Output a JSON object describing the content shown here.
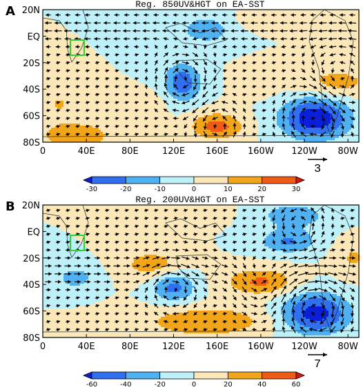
{
  "chart_data": [
    {
      "type": "heatmap",
      "panel_letter": "A",
      "title": "Reg. 850UV&HGT on  EA-SST",
      "x_tick_labels": [
        "0",
        "40E",
        "80E",
        "120E",
        "160E",
        "160W",
        "120W",
        "80W"
      ],
      "y_tick_labels": [
        "20N",
        "EQ",
        "20S",
        "40S",
        "60S",
        "80S"
      ],
      "xlim": [
        0,
        290
      ],
      "ylim": [
        -80,
        20
      ],
      "reference_vector": "3",
      "colorbar_labels": [
        "-30",
        "-20",
        "-10",
        "0",
        "10",
        "20",
        "30"
      ],
      "colorbar_colors": [
        "#0a1fd9",
        "#2f6ff0",
        "#4fb0f2",
        "#bdf0f8",
        "#fbe7b8",
        "#f3a51a",
        "#f05a14",
        "#d8150d"
      ],
      "box_color": "#2fd12f",
      "anomalies": [
        {
          "lon": 150,
          "lat": 5,
          "value": -16,
          "sx": 18,
          "sy": 8
        },
        {
          "lon": 128,
          "lat": -35,
          "value": -27,
          "sx": 12,
          "sy": 10
        },
        {
          "lon": 250,
          "lat": -62,
          "value": -38,
          "sx": 22,
          "sy": 11
        },
        {
          "lon": 270,
          "lat": -35,
          "value": 14,
          "sx": 25,
          "sy": 8
        },
        {
          "lon": 160,
          "lat": -68,
          "value": 24,
          "sx": 17,
          "sy": 7
        },
        {
          "lon": 30,
          "lat": -75,
          "value": 14,
          "sx": 32,
          "sy": 10
        },
        {
          "lon": 15,
          "lat": -50,
          "value": 10,
          "sx": 10,
          "sy": 8
        },
        {
          "lon": 100,
          "lat": -50,
          "value": 6,
          "sx": 12,
          "sy": 6
        },
        {
          "lon": 200,
          "lat": -35,
          "value": 6,
          "sx": 14,
          "sy": 8
        },
        {
          "lon": 195,
          "lat": 12,
          "value": 6,
          "sx": 16,
          "sy": 5
        },
        {
          "lon": 290,
          "lat": 8,
          "value": 9,
          "sx": 10,
          "sy": 6
        }
      ],
      "vortices": [
        {
          "lon": 128,
          "lat": -33,
          "strength": 1.0,
          "r": 15
        },
        {
          "lon": 250,
          "lat": -60,
          "strength": 1.1,
          "r": 18
        },
        {
          "lon": 270,
          "lat": -35,
          "strength": -0.7,
          "r": 20
        },
        {
          "lon": 160,
          "lat": -68,
          "strength": -0.8,
          "r": 14
        }
      ],
      "mean_flow": {
        "u_amp": -0.6,
        "u_lat": 5,
        "u_width": 12
      }
    },
    {
      "type": "heatmap",
      "panel_letter": "B",
      "title": "Reg. 200UV&HGT on  EA-SST",
      "x_tick_labels": [
        "0",
        "40E",
        "80E",
        "120E",
        "160E",
        "160W",
        "120W",
        "80W"
      ],
      "y_tick_labels": [
        "20N",
        "EQ",
        "20S",
        "40S",
        "60S",
        "80S"
      ],
      "xlim": [
        0,
        290
      ],
      "ylim": [
        -80,
        20
      ],
      "reference_vector": "7",
      "colorbar_labels": [
        "-60",
        "-40",
        "-20",
        "0",
        "20",
        "40",
        "60"
      ],
      "colorbar_colors": [
        "#0a1fd9",
        "#2f6ff0",
        "#4fb0f2",
        "#bdf0f8",
        "#fbe7b8",
        "#f3a51a",
        "#f05a14",
        "#d8150d"
      ],
      "box_color": "#2fd12f",
      "anomalies": [
        {
          "lon": 230,
          "lat": 12,
          "value": -30,
          "sx": 25,
          "sy": 8
        },
        {
          "lon": 225,
          "lat": -8,
          "value": -42,
          "sx": 18,
          "sy": 6
        },
        {
          "lon": 250,
          "lat": -62,
          "value": -70,
          "sx": 22,
          "sy": 11
        },
        {
          "lon": 120,
          "lat": -42,
          "value": -48,
          "sx": 14,
          "sy": 8
        },
        {
          "lon": 30,
          "lat": -35,
          "value": -28,
          "sx": 14,
          "sy": 7
        },
        {
          "lon": 100,
          "lat": -25,
          "value": 30,
          "sx": 20,
          "sy": 8
        },
        {
          "lon": 200,
          "lat": -38,
          "value": 44,
          "sx": 22,
          "sy": 7
        },
        {
          "lon": 150,
          "lat": -68,
          "value": 38,
          "sx": 40,
          "sy": 8
        },
        {
          "lon": 285,
          "lat": -20,
          "value": 22,
          "sx": 12,
          "sy": 10
        },
        {
          "lon": 145,
          "lat": 15,
          "value": 14,
          "sx": 20,
          "sy": 6
        }
      ],
      "vortices": [
        {
          "lon": 235,
          "lat": 5,
          "strength": -0.9,
          "r": 15
        },
        {
          "lon": 250,
          "lat": -60,
          "strength": 1.2,
          "r": 18
        },
        {
          "lon": 120,
          "lat": -40,
          "strength": 0.9,
          "r": 14
        },
        {
          "lon": 200,
          "lat": -40,
          "strength": -0.8,
          "r": 16
        }
      ],
      "mean_flow": {
        "u_amp": 0.5,
        "u_lat": -30,
        "u_width": 15
      }
    }
  ]
}
